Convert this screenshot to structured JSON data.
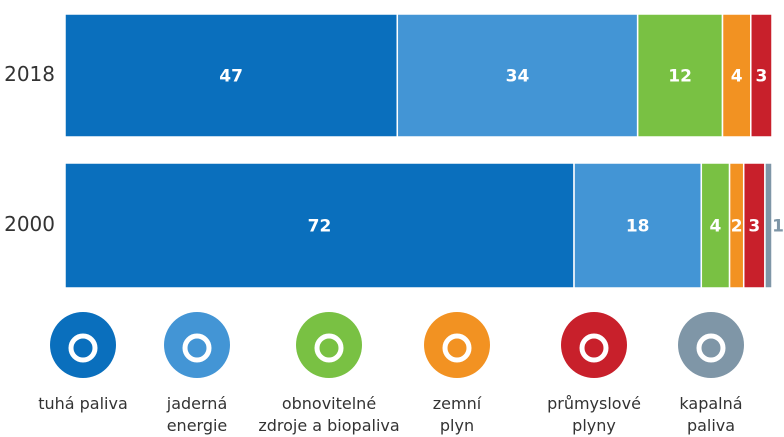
{
  "chart_data": {
    "type": "stacked-bar-horizontal",
    "categories": [
      "2018",
      "2000"
    ],
    "xlim": [
      0,
      100
    ],
    "series": [
      {
        "name": "tuhá paliva",
        "color": "#0a6fbd",
        "values": [
          47,
          72
        ]
      },
      {
        "name": "jaderná\nenergie",
        "color": "#4395d5",
        "values": [
          34,
          18
        ]
      },
      {
        "name": "obnovitelné\nzdroje a biopaliva",
        "color": "#79c143",
        "values": [
          12,
          4
        ]
      },
      {
        "name": "zemní\nplyn",
        "color": "#f29222",
        "values": [
          4,
          2
        ]
      },
      {
        "name": "průmyslové\nplyny",
        "color": "#c8202b",
        "values": [
          3,
          3
        ]
      },
      {
        "name": "kapalná\npaliva",
        "color": "#7f96a7",
        "values": [
          null,
          1
        ]
      }
    ]
  }
}
